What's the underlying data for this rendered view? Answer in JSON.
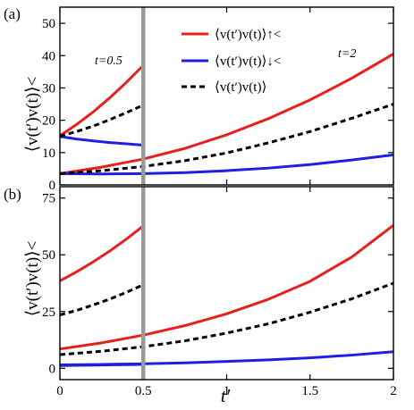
{
  "chart_data": [
    {
      "panel_label": "(a)",
      "type": "line",
      "xlim": [
        0,
        2
      ],
      "ylim": [
        0,
        55
      ],
      "yticks": [
        0,
        10,
        20,
        30,
        40,
        50
      ],
      "ylabel": "⟨v(t′)v(t)⟩<",
      "grid": false,
      "legend_position": "top-center",
      "annotations": [
        "t=0.5",
        "t=2"
      ],
      "vertical_marker": {
        "x": 0.5,
        "color": "#999999"
      },
      "series": [
        {
          "name": "⟨v(t′)v(t)⟩↑<",
          "color": "#e8201c",
          "style": "solid",
          "group": "t=0.5",
          "x": [
            0,
            0.1,
            0.2,
            0.3,
            0.4,
            0.5
          ],
          "values": [
            15.2,
            18.7,
            22.6,
            27.0,
            31.8,
            37.0
          ]
        },
        {
          "name": "⟨v(t′)v(t)⟩↓<",
          "color": "#1f1fe0",
          "style": "solid",
          "group": "t=0.5",
          "x": [
            0,
            0.1,
            0.2,
            0.3,
            0.4,
            0.5
          ],
          "values": [
            15.0,
            14.2,
            13.6,
            13.1,
            12.7,
            12.3
          ]
        },
        {
          "name": "⟨v(t′)v(t)⟩",
          "color": "#000000",
          "style": "dashed",
          "group": "t=0.5",
          "x": [
            0,
            0.1,
            0.2,
            0.3,
            0.4,
            0.5
          ],
          "values": [
            15.1,
            16.5,
            18.2,
            20.2,
            22.4,
            24.7
          ]
        },
        {
          "name": "⟨v(t′)v(t)⟩↑<",
          "color": "#e8201c",
          "style": "solid",
          "group": "t=2",
          "x": [
            0,
            0.25,
            0.5,
            0.75,
            1.0,
            1.25,
            1.5,
            1.75,
            2.0
          ],
          "values": [
            3.5,
            5.5,
            8.0,
            11.3,
            15.5,
            20.5,
            26.3,
            33.0,
            40.5
          ]
        },
        {
          "name": "⟨v(t′)v(t)⟩↓<",
          "color": "#1f1fe0",
          "style": "solid",
          "group": "t=2",
          "x": [
            0,
            0.25,
            0.5,
            0.75,
            1.0,
            1.25,
            1.5,
            1.75,
            2.0
          ],
          "values": [
            3.5,
            3.4,
            3.5,
            3.8,
            4.4,
            5.2,
            6.3,
            7.7,
            9.3
          ]
        },
        {
          "name": "⟨v(t′)v(t)⟩",
          "color": "#000000",
          "style": "dashed",
          "group": "t=2",
          "x": [
            0,
            0.25,
            0.5,
            0.75,
            1.0,
            1.25,
            1.5,
            1.75,
            2.0
          ],
          "values": [
            3.5,
            4.4,
            5.7,
            7.5,
            9.9,
            13.0,
            16.5,
            20.6,
            25.0
          ]
        }
      ]
    },
    {
      "panel_label": "(b)",
      "type": "line",
      "xlim": [
        0,
        2
      ],
      "ylim": [
        -5,
        80
      ],
      "yticks": [
        0,
        25,
        50,
        75
      ],
      "xticks": [
        0,
        0.5,
        1,
        1.5,
        2
      ],
      "xtick_labels": [
        "0",
        "0.5",
        "1",
        "1.5",
        "2"
      ],
      "xlabel": "t′",
      "ylabel": "⟨v(t′)v(t)⟩<",
      "grid": false,
      "vertical_marker": {
        "x": 0.5,
        "color": "#999999"
      },
      "series": [
        {
          "color": "#e8201c",
          "style": "solid",
          "group": "t=0.5",
          "x": [
            0,
            0.1,
            0.2,
            0.3,
            0.4,
            0.5
          ],
          "values": [
            38.5,
            42.5,
            46.9,
            51.7,
            57.0,
            62.7
          ]
        },
        {
          "color": "#000000",
          "style": "dashed",
          "group": "t=0.5",
          "x": [
            0,
            0.1,
            0.2,
            0.3,
            0.4,
            0.5
          ],
          "values": [
            23.5,
            25.5,
            27.9,
            30.5,
            33.5,
            36.8
          ]
        },
        {
          "color": "#1f1fe0",
          "style": "solid",
          "group": "t=0.5",
          "x": [
            0,
            0.1,
            0.2,
            0.3,
            0.4,
            0.5
          ],
          "values": [
            1.2,
            1.3,
            1.4,
            1.5,
            1.6,
            1.7
          ]
        },
        {
          "color": "#e8201c",
          "style": "solid",
          "group": "t=2",
          "x": [
            0,
            0.25,
            0.5,
            0.75,
            1.0,
            1.25,
            1.5,
            1.75,
            2.0
          ],
          "values": [
            8.5,
            11.2,
            14.6,
            18.8,
            24.0,
            30.4,
            38.3,
            49.0,
            63.0
          ]
        },
        {
          "color": "#000000",
          "style": "dashed",
          "group": "t=2",
          "x": [
            0,
            0.25,
            0.5,
            0.75,
            1.0,
            1.25,
            1.5,
            1.75,
            2.0
          ],
          "values": [
            6.0,
            7.5,
            9.5,
            12.1,
            15.5,
            19.6,
            24.7,
            30.6,
            37.5
          ]
        },
        {
          "color": "#1f1fe0",
          "style": "solid",
          "group": "t=2",
          "x": [
            0,
            0.25,
            0.5,
            0.75,
            1.0,
            1.25,
            1.5,
            1.75,
            2.0
          ],
          "values": [
            1.5,
            1.7,
            2.0,
            2.4,
            3.0,
            3.7,
            4.6,
            5.8,
            7.3
          ]
        }
      ]
    }
  ]
}
